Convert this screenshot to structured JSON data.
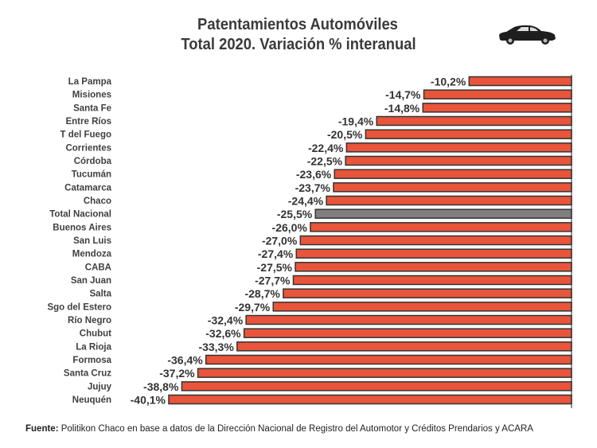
{
  "chart_data": {
    "type": "bar",
    "orientation": "horizontal",
    "title": "Patentamientos Automóviles",
    "subtitle": "Total 2020. Variación % interanual",
    "categories": [
      "La Pampa",
      "Misiones",
      "Santa Fe",
      "Entre Ríos",
      "T del Fuego",
      "Corrientes",
      "Córdoba",
      "Tucumán",
      "Catamarca",
      "Chaco",
      "Total Nacional",
      "Buenos Aires",
      "San Luis",
      "Mendoza",
      "CABA",
      "San Juan",
      "Salta",
      "Sgo del Estero",
      "Río Negro",
      "Chubut",
      "La Rioja",
      "Formosa",
      "Santa Cruz",
      "Jujuy",
      "Neuquén"
    ],
    "values": [
      -10.2,
      -14.7,
      -14.8,
      -19.4,
      -20.5,
      -22.4,
      -22.5,
      -23.6,
      -23.7,
      -24.4,
      -25.5,
      -26.0,
      -27.0,
      -27.4,
      -27.5,
      -27.7,
      -28.7,
      -29.7,
      -32.4,
      -32.6,
      -33.3,
      -36.4,
      -37.2,
      -38.8,
      -40.1
    ],
    "data_labels": [
      "-10,2%",
      "-14,7%",
      "-14,8%",
      "-19,4%",
      "-20,5%",
      "-22,4%",
      "-22,5%",
      "-23,6%",
      "-23,7%",
      "-24,4%",
      "-25,5%",
      "-26,0%",
      "-27,0%",
      "-27,4%",
      "-27,5%",
      "-27,7%",
      "-28,7%",
      "-29,7%",
      "-32,4%",
      "-32,6%",
      "-33,3%",
      "-36,4%",
      "-37,2%",
      "-38,8%",
      "-40,1%"
    ],
    "highlight": "Total Nacional",
    "colors": {
      "bar": "#e8553a",
      "highlight": "#7f7f7f",
      "outline": "#333333"
    },
    "grid": false,
    "legend": "none"
  },
  "source": {
    "label": "Fuente:",
    "text": " Politikon Chaco en base a datos de la Dirección Nacional de Registro del Automotor y Créditos Prendarios y ACARA"
  },
  "icon": "car-icon"
}
